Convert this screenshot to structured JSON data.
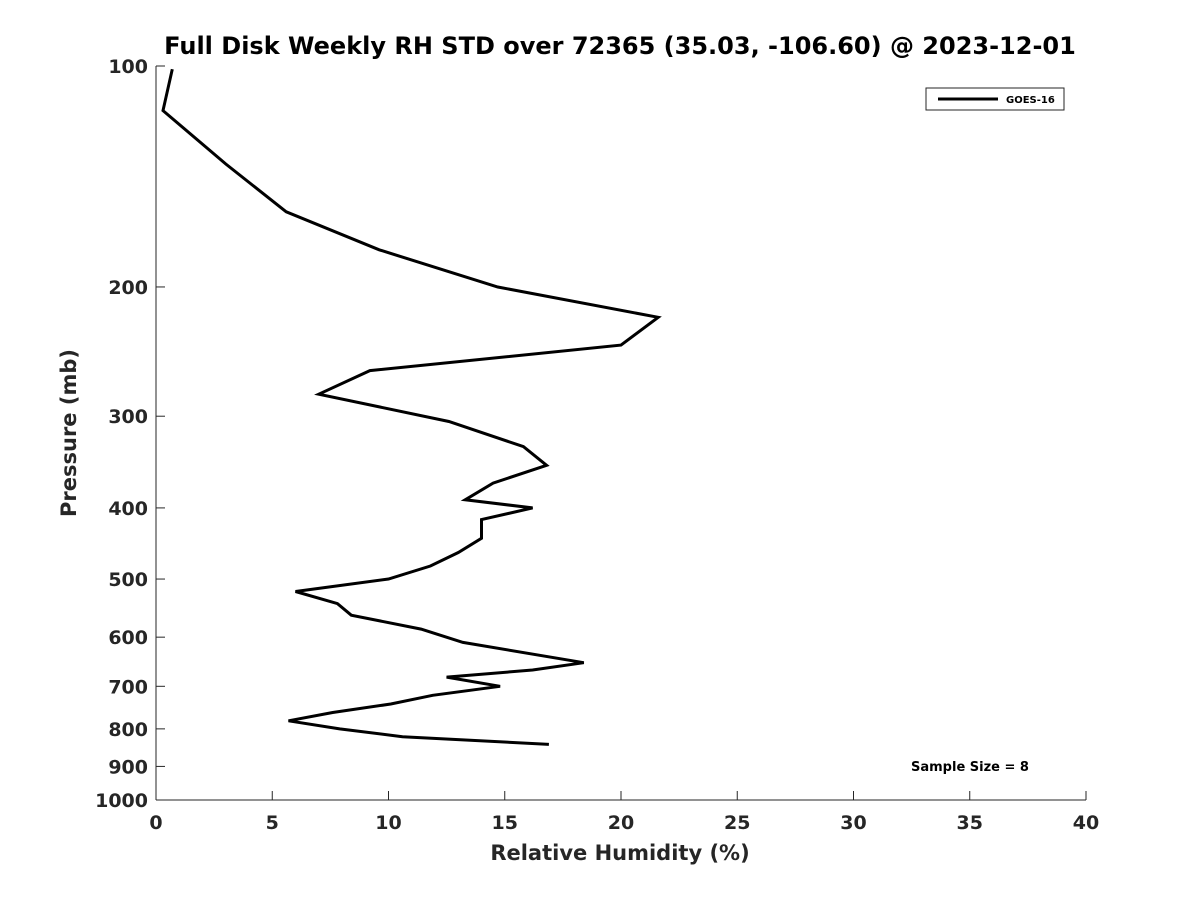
{
  "chart_data": {
    "type": "line",
    "title": "Full Disk Weekly RH STD over 72365 (35.03, -106.60) @ 2023-12-01",
    "xlabel": "Relative Humidity (%)",
    "ylabel": "Pressure (mb)",
    "xlim": [
      0,
      40
    ],
    "ylim": [
      100,
      1000
    ],
    "y_scale": "log",
    "y_reversed": true,
    "x_ticks": [
      0,
      5,
      10,
      15,
      20,
      25,
      30,
      35,
      40
    ],
    "y_ticks": [
      100,
      200,
      300,
      400,
      500,
      600,
      700,
      800,
      900,
      1000
    ],
    "grid": false,
    "legend_position": "top-right",
    "series": [
      {
        "name": "GOES-16",
        "color": "#000000",
        "x": [
          0.7,
          0.3,
          3.0,
          5.6,
          9.6,
          14.7,
          21.6,
          20.0,
          9.2,
          7.0,
          12.6,
          15.8,
          16.8,
          14.5,
          13.3,
          16.2,
          14.0,
          14.0,
          13.0,
          11.8,
          10.0,
          6.0,
          7.8,
          8.4,
          11.4,
          13.2,
          18.4,
          16.2,
          12.5,
          14.8,
          11.9,
          10.1,
          7.6,
          5.7,
          7.9,
          10.6,
          16.9
        ],
        "y": [
          101,
          115,
          136,
          158,
          178,
          200,
          220,
          240,
          260,
          280,
          305,
          330,
          350,
          370,
          390,
          400,
          415,
          440,
          460,
          480,
          500,
          520,
          540,
          560,
          585,
          610,
          650,
          665,
          680,
          700,
          720,
          740,
          760,
          780,
          800,
          820,
          840
        ]
      }
    ],
    "annotations": [
      "Sample Size = 8"
    ]
  }
}
